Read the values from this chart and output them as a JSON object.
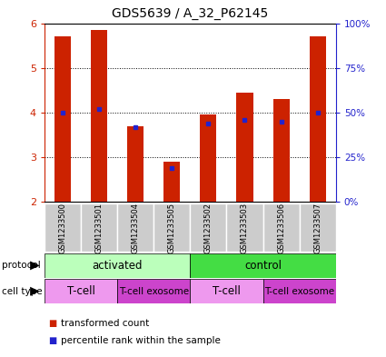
{
  "title": "GDS5639 / A_32_P62145",
  "samples": [
    "GSM1233500",
    "GSM1233501",
    "GSM1233504",
    "GSM1233505",
    "GSM1233502",
    "GSM1233503",
    "GSM1233506",
    "GSM1233507"
  ],
  "transformed_counts": [
    5.7,
    5.85,
    3.7,
    2.9,
    3.95,
    4.45,
    4.3,
    5.7
  ],
  "percentile_ranks": [
    50,
    52,
    42,
    19,
    44,
    46,
    45,
    50
  ],
  "ylim": [
    2,
    6
  ],
  "yticks": [
    2,
    3,
    4,
    5,
    6
  ],
  "right_yticks": [
    0,
    25,
    50,
    75,
    100
  ],
  "right_yticklabels": [
    "0%",
    "25%",
    "50%",
    "75%",
    "100%"
  ],
  "bar_color": "#cc2200",
  "dot_color": "#2222cc",
  "protocol_groups": [
    {
      "label": "activated",
      "start": 0,
      "end": 4,
      "color": "#bbffbb"
    },
    {
      "label": "control",
      "start": 4,
      "end": 8,
      "color": "#44dd44"
    }
  ],
  "cell_type_groups": [
    {
      "label": "T-cell",
      "start": 0,
      "end": 2,
      "color": "#ee99ee"
    },
    {
      "label": "T-cell exosome",
      "start": 2,
      "end": 4,
      "color": "#cc44cc"
    },
    {
      "label": "T-cell",
      "start": 4,
      "end": 6,
      "color": "#ee99ee"
    },
    {
      "label": "T-cell exosome",
      "start": 6,
      "end": 8,
      "color": "#cc44cc"
    }
  ],
  "legend_items": [
    {
      "label": "transformed count",
      "color": "#cc2200"
    },
    {
      "label": "percentile rank within the sample",
      "color": "#2222cc"
    }
  ],
  "left_tick_color": "#cc2200",
  "right_tick_color": "#2222cc",
  "bar_width": 0.45,
  "sample_bg_color": "#cccccc",
  "sample_sep_color": "#ffffff",
  "fig_bg": "#ffffff"
}
